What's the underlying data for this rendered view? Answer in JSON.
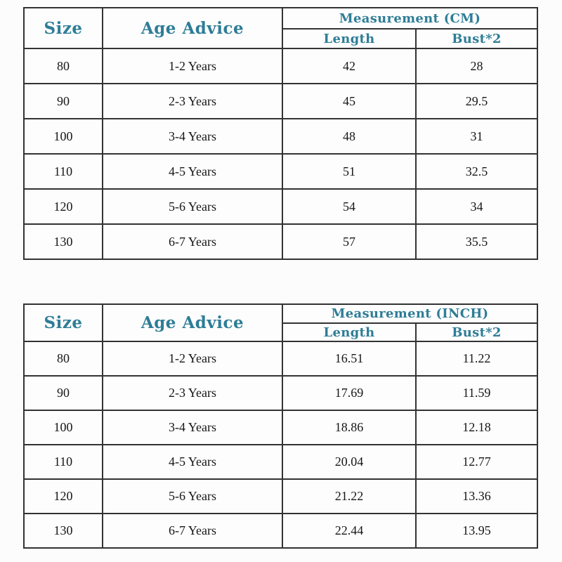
{
  "colors": {
    "header_text": "#2e7d96",
    "data_text": "#161616",
    "border": "#333333",
    "background": "#fcfcfc"
  },
  "tables": [
    {
      "id": "cm",
      "col_size": "Size",
      "col_age": "Age Advice",
      "col_group": "Measurement (CM)",
      "col_length": "Length",
      "col_bust": "Bust*2",
      "rows": [
        {
          "size": "80",
          "age": "1-2 Years",
          "length": "42",
          "bust": "28"
        },
        {
          "size": "90",
          "age": "2-3 Years",
          "length": "45",
          "bust": "29.5"
        },
        {
          "size": "100",
          "age": "3-4 Years",
          "length": "48",
          "bust": "31"
        },
        {
          "size": "110",
          "age": "4-5 Years",
          "length": "51",
          "bust": "32.5"
        },
        {
          "size": "120",
          "age": "5-6 Years",
          "length": "54",
          "bust": "34"
        },
        {
          "size": "130",
          "age": "6-7 Years",
          "length": "57",
          "bust": "35.5"
        }
      ]
    },
    {
      "id": "inch",
      "col_size": "Size",
      "col_age": "Age Advice",
      "col_group": "Measurement (INCH)",
      "col_length": "Length",
      "col_bust": "Bust*2",
      "rows": [
        {
          "size": "80",
          "age": "1-2 Years",
          "length": "16.51",
          "bust": "11.22"
        },
        {
          "size": "90",
          "age": "2-3 Years",
          "length": "17.69",
          "bust": "11.59"
        },
        {
          "size": "100",
          "age": "3-4 Years",
          "length": "18.86",
          "bust": "12.18"
        },
        {
          "size": "110",
          "age": "4-5 Years",
          "length": "20.04",
          "bust": "12.77"
        },
        {
          "size": "120",
          "age": "5-6 Years",
          "length": "21.22",
          "bust": "13.36"
        },
        {
          "size": "130",
          "age": "6-7 Years",
          "length": "22.44",
          "bust": "13.95"
        }
      ]
    }
  ],
  "chart_data": [
    {
      "type": "table",
      "title": "Measurement (CM)",
      "columns": [
        "Size",
        "Age Advice",
        "Length",
        "Bust*2"
      ],
      "rows": [
        [
          "80",
          "1-2 Years",
          42,
          28
        ],
        [
          "90",
          "2-3 Years",
          45,
          29.5
        ],
        [
          "100",
          "3-4 Years",
          48,
          31
        ],
        [
          "110",
          "4-5 Years",
          51,
          32.5
        ],
        [
          "120",
          "5-6 Years",
          54,
          34
        ],
        [
          "130",
          "6-7 Years",
          57,
          35.5
        ]
      ]
    },
    {
      "type": "table",
      "title": "Measurement (INCH)",
      "columns": [
        "Size",
        "Age Advice",
        "Length",
        "Bust*2"
      ],
      "rows": [
        [
          "80",
          "1-2 Years",
          16.51,
          11.22
        ],
        [
          "90",
          "2-3 Years",
          17.69,
          11.59
        ],
        [
          "100",
          "3-4 Years",
          18.86,
          12.18
        ],
        [
          "110",
          "4-5 Years",
          20.04,
          12.77
        ],
        [
          "120",
          "5-6 Years",
          21.22,
          13.36
        ],
        [
          "130",
          "6-7 Years",
          22.44,
          13.95
        ]
      ]
    }
  ]
}
